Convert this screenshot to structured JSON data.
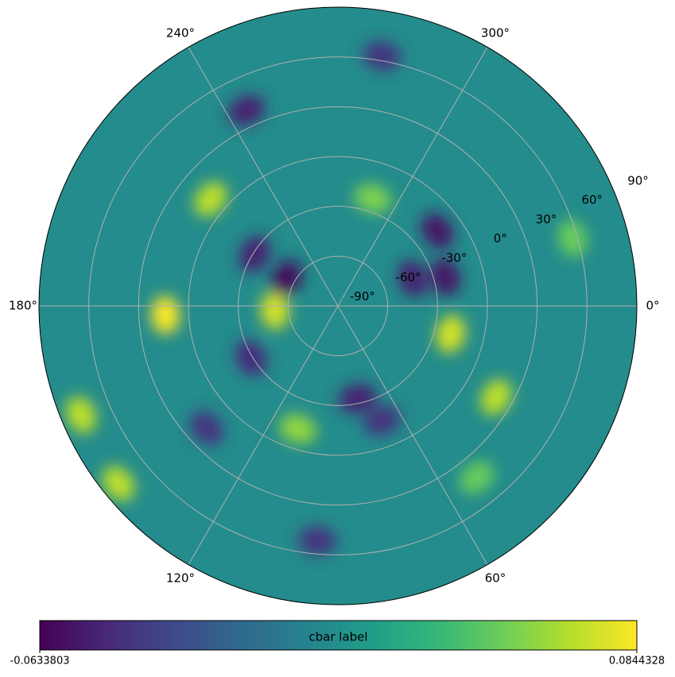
{
  "chart_data": {
    "type": "polar-map",
    "colormap": "viridis",
    "base_value": 0.008,
    "xticks": [
      {
        "value": 0,
        "label": "0°"
      },
      {
        "value": 60,
        "label": "60°"
      },
      {
        "value": 120,
        "label": "120°"
      },
      {
        "value": 180,
        "label": "180°"
      },
      {
        "value": 240,
        "label": "240°"
      },
      {
        "value": 300,
        "label": "300°"
      }
    ],
    "ylim": [
      -90,
      90
    ],
    "yticks": [
      {
        "value": -90,
        "label": "-90°"
      },
      {
        "value": -60,
        "label": "-60°"
      },
      {
        "value": -30,
        "label": "-30°"
      },
      {
        "value": 0,
        "label": "0°"
      },
      {
        "value": 30,
        "label": "30°"
      },
      {
        "value": 60,
        "label": "60°"
      },
      {
        "value": 90,
        "label": "90°"
      }
    ],
    "grid": true,
    "field": [
      {
        "lon": 177,
        "lat": 14,
        "value": 0.084
      },
      {
        "lon": 157,
        "lat": 78,
        "value": 0.07
      },
      {
        "lon": 141,
        "lat": 80,
        "value": 0.07
      },
      {
        "lon": 176,
        "lat": -52,
        "value": 0.075
      },
      {
        "lon": 14,
        "lat": -20,
        "value": 0.075
      },
      {
        "lon": 30,
        "lat": 20,
        "value": 0.07
      },
      {
        "lon": 220,
        "lat": 10,
        "value": 0.07
      },
      {
        "lon": 208,
        "lat": -55,
        "value": -0.06
      },
      {
        "lon": 323,
        "lat": -15,
        "value": -0.055
      },
      {
        "lon": 345,
        "lat": -23,
        "value": -0.055
      },
      {
        "lon": 340,
        "lat": -42,
        "value": -0.05
      },
      {
        "lon": 245,
        "lat": 40,
        "value": -0.05
      },
      {
        "lon": 212,
        "lat": -31,
        "value": -0.05
      },
      {
        "lon": 149,
        "lat": -29,
        "value": -0.045
      },
      {
        "lon": 78,
        "lat": -33,
        "value": -0.05
      },
      {
        "lon": 69,
        "lat": -16,
        "value": -0.04
      },
      {
        "lon": 137,
        "lat": 18,
        "value": -0.04
      },
      {
        "lon": 108,
        "lat": -12,
        "value": 0.06
      },
      {
        "lon": 288,
        "lat": -22,
        "value": 0.055
      },
      {
        "lon": 280,
        "lat": 63,
        "value": -0.04
      },
      {
        "lon": 95,
        "lat": 52,
        "value": -0.04
      },
      {
        "lon": 344,
        "lat": 57,
        "value": 0.05
      },
      {
        "lon": 51,
        "lat": 43,
        "value": 0.05
      }
    ],
    "colorbar": {
      "label": "cbar label",
      "clim": [
        -0.0633803,
        0.0844328
      ],
      "ticks": [
        -0.0633803,
        0.0844328
      ]
    }
  }
}
